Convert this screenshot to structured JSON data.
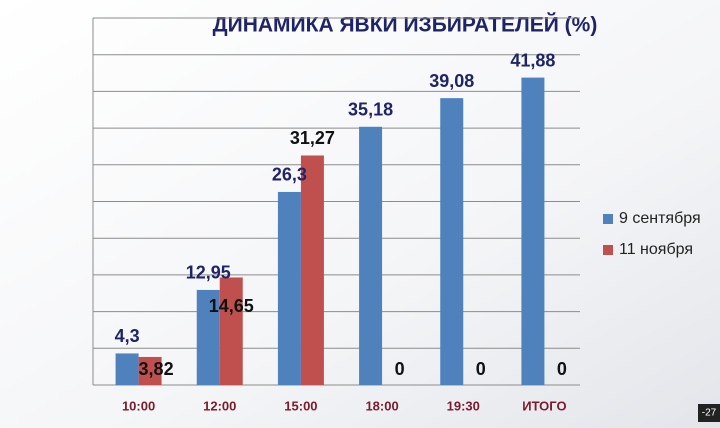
{
  "chart_data": {
    "type": "bar",
    "title": "ДИНАМИКА ЯВКИ ИЗБИРАТЕЛЕЙ (%)",
    "categories": [
      "10:00",
      "12:00",
      "15:00",
      "18:00",
      "19:30",
      "ИТОГО"
    ],
    "series": [
      {
        "name": "9 сентября",
        "color": "#4f81bd",
        "values": [
          4.3,
          12.95,
          26.3,
          35.18,
          39.08,
          41.88
        ],
        "value_labels": [
          "4,3",
          "12,95",
          "26,3",
          "35,18",
          "39,08",
          "41,88"
        ]
      },
      {
        "name": "11 ноября",
        "color": "#c0504d",
        "values": [
          3.82,
          14.65,
          31.27,
          0,
          0,
          0
        ],
        "value_labels": [
          "3,82",
          "14,65",
          "31,27",
          "0",
          "0",
          "0"
        ]
      }
    ],
    "ylim": [
      0,
      50
    ],
    "yticks": [
      0,
      5,
      10,
      15,
      20,
      25,
      30,
      35,
      40,
      45,
      50
    ],
    "grid": true,
    "legend": "right"
  },
  "overlay_text": "-27"
}
